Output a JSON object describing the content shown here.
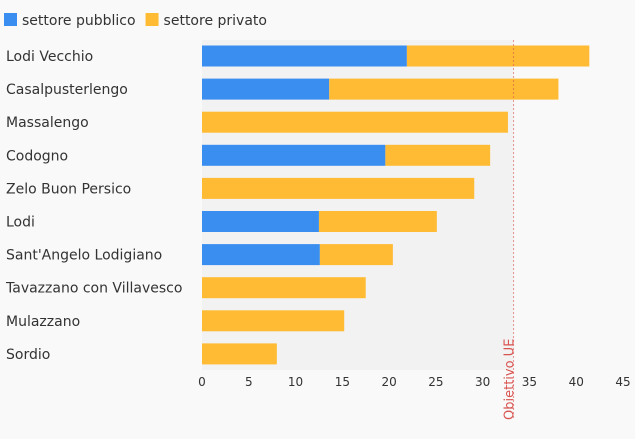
{
  "chart_data": {
    "type": "bar",
    "orientation": "horizontal",
    "stacked": true,
    "categories": [
      "Lodi Vecchio",
      "Casalpusterlengo",
      "Massalengo",
      "Codogno",
      "Zelo Buon Persico",
      "Lodi",
      "Sant'Angelo Lodigiano",
      "Tavazzano con Villavesco",
      "Mulazzano",
      "Sordio"
    ],
    "series": [
      {
        "name": "settore pubblico",
        "color": "#3a8ef0",
        "values": [
          21.9,
          13.6,
          0,
          19.6,
          0,
          12.5,
          12.6,
          0,
          0,
          0
        ]
      },
      {
        "name": "settore privato",
        "color": "#ffbb33",
        "values": [
          19.5,
          24.5,
          32.7,
          11.2,
          29.1,
          12.6,
          7.8,
          17.5,
          15.2,
          8.0
        ]
      }
    ],
    "xlim": [
      0,
      45
    ],
    "xticks": [
      0,
      5,
      10,
      15,
      20,
      25,
      30,
      35,
      40,
      45
    ],
    "reference_line": {
      "label": "Obiettivo UE",
      "value": 33.3,
      "color": "#d9534f"
    },
    "legend_position": "top-left",
    "grid": false
  }
}
